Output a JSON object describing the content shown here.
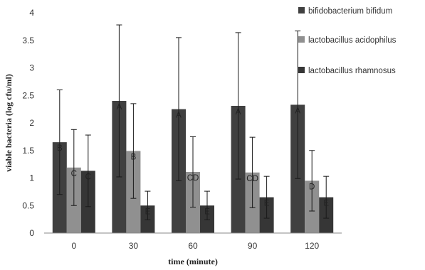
{
  "chart_data": {
    "type": "bar",
    "xlabel": "time (minute)",
    "ylabel": "viable bacteria (log cfu/ml)",
    "ylim": [
      0,
      4
    ],
    "yticks": [
      "0",
      "0.5",
      "1",
      "1.5",
      "2",
      "2.5",
      "3",
      "3.5",
      "4"
    ],
    "categories": [
      "0",
      "30",
      "60",
      "90",
      "120"
    ],
    "grid": false,
    "legend_position": "top-right",
    "series": [
      {
        "name": "bifidobacterium bifidum",
        "color": "#404040",
        "values": [
          1.65,
          2.4,
          2.25,
          2.31,
          2.33
        ],
        "errors": [
          0.95,
          1.38,
          1.3,
          1.33,
          1.34
        ],
        "labels": [
          "B",
          "A",
          "A",
          "A",
          "A"
        ]
      },
      {
        "name": "lactobacillus acidophilus",
        "color": "#909090",
        "values": [
          1.19,
          1.49,
          1.11,
          1.1,
          0.95
        ],
        "errors": [
          0.69,
          0.86,
          0.64,
          0.64,
          0.55
        ],
        "labels": [
          "C",
          "B",
          "CD",
          "CD",
          "D"
        ]
      },
      {
        "name": "lactobacillus rhamnosus",
        "color": "#363636",
        "values": [
          1.13,
          0.5,
          0.5,
          0.65,
          0.65
        ],
        "errors": [
          0.65,
          0.26,
          0.26,
          0.38,
          0.38
        ],
        "labels": [
          "C",
          "E",
          "E",
          "E",
          "E"
        ]
      }
    ]
  }
}
